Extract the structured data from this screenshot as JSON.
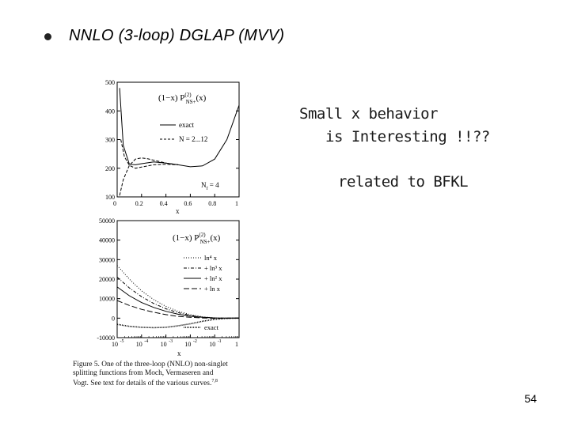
{
  "slide": {
    "bullet": "NNLO (3-loop) DGLAP (MVV)",
    "note1_line1": "Small x behavior",
    "note1_line2": "is Interesting !!??",
    "note2": "related to BFKL",
    "page_number": "54",
    "caption_lines": [
      "Figure 5.  One of the three-loop (NNLO) non-singlet",
      "splitting functions from Moch, Vermaseren and",
      "Vogt.  See text for details of the various curves."
    ],
    "caption_ref": "7,8"
  },
  "chart_data": [
    {
      "type": "line",
      "label_left": "(1−x) P",
      "label_sup": "(2)",
      "label_sub": "NS+",
      "label_right": "(x)",
      "xlabel": "x",
      "ylabel": "",
      "xlim": [
        0,
        1
      ],
      "ylim": [
        100,
        500
      ],
      "yticks": [
        "100",
        "200",
        "300",
        "400",
        "500"
      ],
      "xticks": [
        "0",
        "0.2",
        "0.4",
        "0.6",
        "0.8",
        "1"
      ],
      "legend": [
        "exact",
        "N = 2...12"
      ],
      "annotation": "N",
      "annotation_sub": "f",
      "annotation_rest": " = 4",
      "series": [
        {
          "name": "exact",
          "style": "solid",
          "x": [
            0.02,
            0.05,
            0.1,
            0.15,
            0.2,
            0.3,
            0.4,
            0.5,
            0.6,
            0.7,
            0.8,
            0.9,
            0.95,
            1.0
          ],
          "y": [
            480,
            280,
            214,
            212,
            216,
            222,
            218,
            212,
            205,
            208,
            232,
            300,
            360,
            420
          ]
        },
        {
          "name": "N = 2...12",
          "style": "dashed",
          "x": [
            0.02,
            0.05,
            0.1,
            0.15,
            0.2,
            0.25,
            0.3,
            0.4,
            0.5
          ],
          "y": [
            105,
            160,
            210,
            232,
            236,
            233,
            228,
            218,
            212
          ]
        },
        {
          "name": "",
          "style": "dashed",
          "x": [
            0.03,
            0.06,
            0.1,
            0.15,
            0.2,
            0.3,
            0.4,
            0.5
          ],
          "y": [
            300,
            240,
            210,
            200,
            204,
            212,
            214,
            212
          ]
        }
      ]
    },
    {
      "type": "line",
      "label_left": "(1−x) P",
      "label_sup": "(2)",
      "label_sub": "NS+",
      "label_right": "(x)",
      "xlabel": "x",
      "ylabel": "",
      "xscale": "log",
      "xlim": [
        -5,
        0
      ],
      "ylim": [
        -10000,
        50000
      ],
      "yticks": [
        "-10000",
        "0",
        "10000",
        "20000",
        "30000",
        "40000",
        "50000"
      ],
      "xticks": [
        "10",
        "10",
        "10",
        "10",
        "10",
        "1"
      ],
      "xtick_exps": [
        "-5",
        "-4",
        "-3",
        "-2",
        "-1",
        ""
      ],
      "legend": [
        "ln⁴ x",
        "+ ln³ x",
        "+ ln² x",
        "+ ln x",
        "exact"
      ],
      "series": [
        {
          "name": "ln⁴ x",
          "style": "dotted",
          "x": [
            -5,
            -4.5,
            -4,
            -3.5,
            -3,
            -2.5,
            -2,
            -1.5,
            -1,
            -0.5,
            0
          ],
          "y": [
            27000,
            20000,
            14000,
            9500,
            6000,
            3500,
            1800,
            700,
            150,
            0,
            0
          ]
        },
        {
          "name": "+ ln³ x",
          "style": "dash-dot",
          "x": [
            -5,
            -4.5,
            -4,
            -3.5,
            -3,
            -2.5,
            -2,
            -1.5,
            -1,
            -0.5,
            0
          ],
          "y": [
            21000,
            15500,
            11000,
            7500,
            4800,
            2800,
            1400,
            500,
            100,
            0,
            0
          ]
        },
        {
          "name": "+ ln² x",
          "style": "solid",
          "x": [
            -5,
            -4.5,
            -4,
            -3.5,
            -3,
            -2.5,
            -2,
            -1.5,
            -1,
            -0.5,
            0
          ],
          "y": [
            16000,
            11500,
            8000,
            5500,
            3500,
            2000,
            1000,
            400,
            100,
            0,
            0
          ]
        },
        {
          "name": "+ ln x",
          "style": "longdash",
          "x": [
            -5,
            -4.5,
            -4,
            -3.5,
            -3,
            -2.5,
            -2,
            -1.5,
            -1,
            -0.5,
            0
          ],
          "y": [
            9000,
            6500,
            4500,
            3000,
            1800,
            900,
            400,
            100,
            -100,
            -100,
            0
          ]
        },
        {
          "name": "exact",
          "style": "dense-dot",
          "x": [
            -5,
            -4.5,
            -4,
            -3.5,
            -3,
            -2.5,
            -2,
            -1.5,
            -1,
            -0.5,
            0
          ],
          "y": [
            -3200,
            -4200,
            -4700,
            -4900,
            -4700,
            -3900,
            -2900,
            -1600,
            -600,
            -100,
            0
          ]
        }
      ]
    }
  ]
}
